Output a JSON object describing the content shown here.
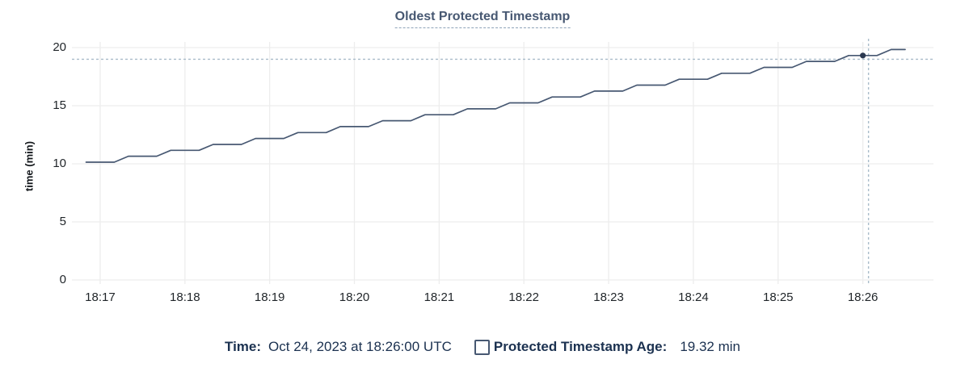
{
  "title": "Oldest Protected Timestamp",
  "colors": {
    "line": "#475872",
    "dot": "#2b3950",
    "crosshair": "#a9bcca",
    "grid": "#ededed",
    "title": "#475872",
    "legend_text": "#1b3150",
    "tick_text": "#1f2428",
    "checkbox_border": "#475872"
  },
  "legend": {
    "time_label": "Time:",
    "time_value": "Oct 24, 2023 at 18:26:00 UTC",
    "series_label": "Protected Timestamp Age:",
    "series_value": "19.32 min",
    "series_checked": false
  },
  "chart_data": {
    "type": "line",
    "title": "Oldest Protected Timestamp",
    "xlabel": "",
    "ylabel": "time (min)",
    "ylim": [
      0,
      20
    ],
    "x_domain": [
      "18:16:40",
      "18:26:50"
    ],
    "x_tick_labels": [
      "18:17",
      "18:18",
      "18:19",
      "18:20",
      "18:21",
      "18:22",
      "18:23",
      "18:24",
      "18:25",
      "18:26"
    ],
    "y_tick_labels": [
      "0",
      "5",
      "10",
      "15",
      "20"
    ],
    "grid": "both",
    "legend_position": "bottom",
    "hover": {
      "point_time": "18:26:00",
      "point_value": 19.32,
      "crosshair_x_time": "18:26:04",
      "crosshair_y_value": 19.0
    },
    "series": [
      {
        "name": "Protected Timestamp Age",
        "unit": "min",
        "points": [
          [
            "18:16:50",
            10.14
          ],
          [
            "18:17:00",
            10.14
          ],
          [
            "18:17:10",
            10.14
          ],
          [
            "18:17:20",
            10.65
          ],
          [
            "18:17:30",
            10.65
          ],
          [
            "18:17:40",
            10.65
          ],
          [
            "18:17:50",
            11.16
          ],
          [
            "18:18:00",
            11.16
          ],
          [
            "18:18:10",
            11.16
          ],
          [
            "18:18:20",
            11.67
          ],
          [
            "18:18:30",
            11.67
          ],
          [
            "18:18:40",
            11.67
          ],
          [
            "18:18:50",
            12.18
          ],
          [
            "18:19:00",
            12.18
          ],
          [
            "18:19:10",
            12.18
          ],
          [
            "18:19:20",
            12.69
          ],
          [
            "18:19:30",
            12.69
          ],
          [
            "18:19:40",
            12.69
          ],
          [
            "18:19:50",
            13.2
          ],
          [
            "18:20:00",
            13.2
          ],
          [
            "18:20:10",
            13.2
          ],
          [
            "18:20:20",
            13.71
          ],
          [
            "18:20:30",
            13.71
          ],
          [
            "18:20:40",
            13.71
          ],
          [
            "18:20:50",
            14.22
          ],
          [
            "18:21:00",
            14.22
          ],
          [
            "18:21:10",
            14.22
          ],
          [
            "18:21:20",
            14.73
          ],
          [
            "18:21:30",
            14.73
          ],
          [
            "18:21:40",
            14.73
          ],
          [
            "18:21:50",
            15.24
          ],
          [
            "18:22:00",
            15.24
          ],
          [
            "18:22:10",
            15.24
          ],
          [
            "18:22:20",
            15.75
          ],
          [
            "18:22:30",
            15.75
          ],
          [
            "18:22:40",
            15.75
          ],
          [
            "18:22:50",
            16.26
          ],
          [
            "18:23:00",
            16.26
          ],
          [
            "18:23:10",
            16.26
          ],
          [
            "18:23:20",
            16.77
          ],
          [
            "18:23:30",
            16.77
          ],
          [
            "18:23:40",
            16.77
          ],
          [
            "18:23:50",
            17.28
          ],
          [
            "18:24:00",
            17.28
          ],
          [
            "18:24:10",
            17.28
          ],
          [
            "18:24:20",
            17.79
          ],
          [
            "18:24:30",
            17.79
          ],
          [
            "18:24:40",
            17.79
          ],
          [
            "18:24:50",
            18.3
          ],
          [
            "18:25:00",
            18.3
          ],
          [
            "18:25:10",
            18.3
          ],
          [
            "18:25:20",
            18.81
          ],
          [
            "18:25:30",
            18.81
          ],
          [
            "18:25:40",
            18.81
          ],
          [
            "18:25:50",
            19.32
          ],
          [
            "18:26:00",
            19.32
          ],
          [
            "18:26:10",
            19.32
          ],
          [
            "18:26:20",
            19.83
          ],
          [
            "18:26:30",
            19.83
          ]
        ]
      }
    ]
  }
}
